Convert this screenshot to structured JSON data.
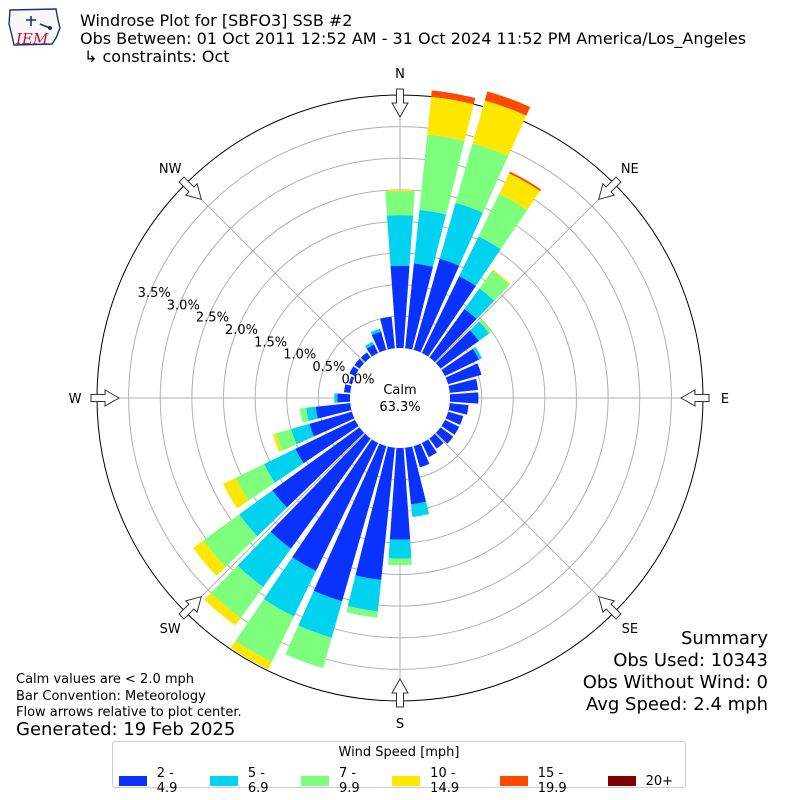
{
  "header": {
    "title": "Windrose Plot for [SBFO3] SSB #2",
    "obs_between": "Obs Between: 01 Oct 2011 12:52 AM - 31 Oct 2024 11:52 PM America/Los_Angeles",
    "constraints": "↳ constraints: Oct",
    "logo_text": "IEM"
  },
  "footnotes": {
    "calm_note": "Calm values are < 2.0 mph",
    "bar_convention": "Bar Convention: Meteorology",
    "flow_arrows": "Flow arrows relative to plot center.",
    "generated": "Generated: 19 Feb 2025"
  },
  "summary": {
    "title": "Summary",
    "obs_used": "Obs Used: 10343",
    "obs_without_wind": "Obs Without Wind: 0",
    "avg_speed": "Avg Speed: 2.4 mph"
  },
  "chart_data": {
    "type": "windrose",
    "calm_label": "Calm",
    "calm_value": "63.3%",
    "radial_ticks": [
      0.0,
      0.5,
      1.0,
      1.5,
      2.0,
      2.5,
      3.0,
      3.5
    ],
    "radial_tick_labels": [
      "0.0%",
      "0.5%",
      "1.0%",
      "1.5%",
      "2.0%",
      "2.5%",
      "3.0%",
      "3.5%"
    ],
    "rmax": 4.0,
    "compass_labels": [
      {
        "label": "N",
        "deg": 0
      },
      {
        "label": "NE",
        "deg": 45
      },
      {
        "label": "E",
        "deg": 90
      },
      {
        "label": "SE",
        "deg": 135
      },
      {
        "label": "S",
        "deg": 180
      },
      {
        "label": "SW",
        "deg": 225
      },
      {
        "label": "W",
        "deg": 270
      },
      {
        "label": "NW",
        "deg": 315
      }
    ],
    "legend_title": "Wind Speed [mph]",
    "bins": [
      {
        "name": "2 - 4.9",
        "color": "#0a32ff"
      },
      {
        "name": "5 - 6.9",
        "color": "#00d2ef"
      },
      {
        "name": "7 - 9.9",
        "color": "#7dff7d"
      },
      {
        "name": "10 - 14.9",
        "color": "#ffe600"
      },
      {
        "name": "15 - 19.9",
        "color": "#ff4800"
      },
      {
        "name": "20+",
        "color": "#7f0000"
      }
    ],
    "directions_deg": [
      0,
      10,
      20,
      30,
      40,
      50,
      60,
      70,
      80,
      90,
      100,
      110,
      120,
      130,
      140,
      150,
      160,
      170,
      180,
      190,
      200,
      210,
      220,
      230,
      240,
      250,
      260,
      270,
      280,
      290,
      300,
      310,
      320,
      330,
      340,
      350
    ],
    "cumulative_percent": [
      [
        1.3,
        2.1,
        2.48,
        2.5,
        2.5,
        2.5
      ],
      [
        1.35,
        2.2,
        3.4,
        4.0,
        4.1,
        4.1
      ],
      [
        1.5,
        2.42,
        3.4,
        4.1,
        4.25,
        4.25
      ],
      [
        1.35,
        2.05,
        2.8,
        3.16,
        3.19,
        3.19
      ],
      [
        0.95,
        1.35,
        1.7,
        1.72,
        1.72,
        1.72
      ],
      [
        0.75,
        0.95,
        1.0,
        1.0,
        1.0,
        1.0
      ],
      [
        0.6,
        0.65,
        0.65,
        0.65,
        0.65,
        0.65
      ],
      [
        0.55,
        0.55,
        0.55,
        0.55,
        0.55,
        0.55
      ],
      [
        0.45,
        0.45,
        0.45,
        0.45,
        0.45,
        0.45
      ],
      [
        0.45,
        0.45,
        0.45,
        0.45,
        0.45,
        0.45
      ],
      [
        0.3,
        0.3,
        0.3,
        0.3,
        0.3,
        0.3
      ],
      [
        0.25,
        0.25,
        0.25,
        0.25,
        0.25,
        0.25
      ],
      [
        0.25,
        0.25,
        0.25,
        0.25,
        0.25,
        0.25
      ],
      [
        0.25,
        0.25,
        0.25,
        0.25,
        0.25,
        0.25
      ],
      [
        0.2,
        0.2,
        0.2,
        0.2,
        0.2,
        0.2
      ],
      [
        0.25,
        0.25,
        0.25,
        0.25,
        0.25,
        0.25
      ],
      [
        0.35,
        0.35,
        0.35,
        0.35,
        0.35,
        0.35
      ],
      [
        0.9,
        1.1,
        1.1,
        1.1,
        1.1,
        1.1
      ],
      [
        1.45,
        1.75,
        1.85,
        1.85,
        1.85,
        1.85
      ],
      [
        2.1,
        2.6,
        2.7,
        2.7,
        2.7,
        2.7
      ],
      [
        2.55,
        3.15,
        3.65,
        3.65,
        3.65,
        3.65
      ],
      [
        2.25,
        3.05,
        3.85,
        3.98,
        3.98,
        3.98
      ],
      [
        2.15,
        2.9,
        3.5,
        3.65,
        3.65,
        3.65
      ],
      [
        1.7,
        2.35,
        3.05,
        3.25,
        3.25,
        3.25
      ],
      [
        1.05,
        1.6,
        2.1,
        2.32,
        2.32,
        2.32
      ],
      [
        0.7,
        1.0,
        1.25,
        1.3,
        1.3,
        1.3
      ],
      [
        0.55,
        0.7,
        0.8,
        0.8,
        0.8,
        0.8
      ],
      [
        0.2,
        0.25,
        0.25,
        0.25,
        0.25,
        0.25
      ],
      [
        0.1,
        0.1,
        0.1,
        0.1,
        0.1,
        0.1
      ],
      [
        0.05,
        0.05,
        0.05,
        0.05,
        0.05,
        0.05
      ],
      [
        0.1,
        0.1,
        0.1,
        0.1,
        0.1,
        0.1
      ],
      [
        0.1,
        0.1,
        0.1,
        0.1,
        0.1,
        0.1
      ],
      [
        0.1,
        0.1,
        0.1,
        0.1,
        0.1,
        0.1
      ],
      [
        0.15,
        0.2,
        0.2,
        0.2,
        0.2,
        0.2
      ],
      [
        0.3,
        0.35,
        0.35,
        0.35,
        0.35,
        0.35
      ],
      [
        0.5,
        0.5,
        0.5,
        0.5,
        0.5,
        0.5
      ]
    ]
  }
}
